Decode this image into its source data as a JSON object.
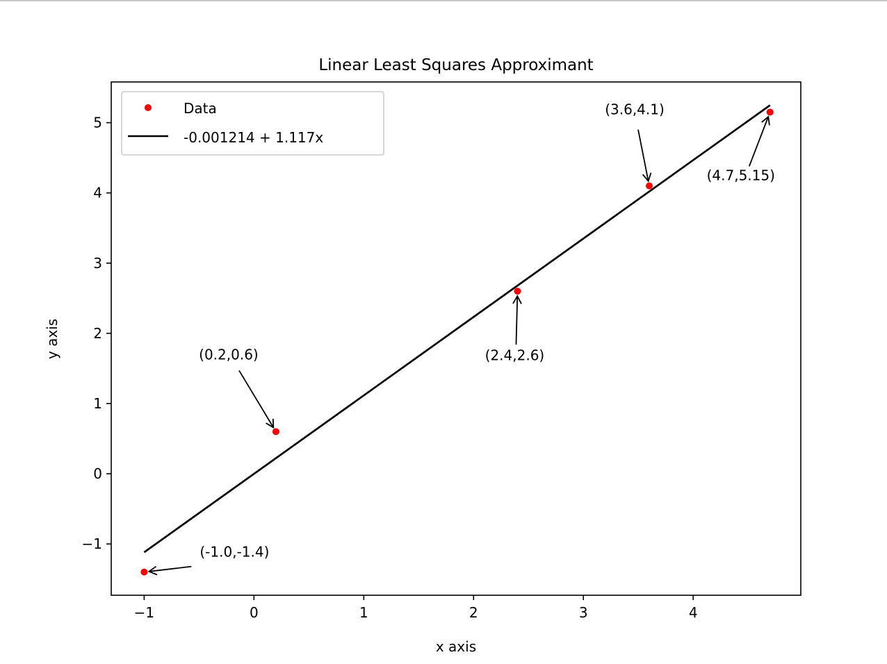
{
  "chart_data": {
    "type": "scatter",
    "title": "Linear Least Squares Approximant",
    "xlabel": "x axis",
    "ylabel": "y axis",
    "xlim": [
      -1.3,
      4.98
    ],
    "ylim": [
      -1.73,
      5.58
    ],
    "grid": false,
    "legend_position": "top-left",
    "x_ticks": [
      -1,
      0,
      1,
      2,
      3,
      4
    ],
    "x_tick_labels": [
      "−1",
      "0",
      "1",
      "2",
      "3",
      "4"
    ],
    "y_ticks": [
      -1,
      0,
      1,
      2,
      3,
      4,
      5
    ],
    "y_tick_labels": [
      "−1",
      "0",
      "1",
      "2",
      "3",
      "4",
      "5"
    ],
    "series": [
      {
        "name": "Data",
        "type": "scatter",
        "color": "#ff0000",
        "points": [
          {
            "x": -1.0,
            "y": -1.4,
            "label": "(-1.0,-1.4)"
          },
          {
            "x": 0.2,
            "y": 0.6,
            "label": "(0.2,0.6)"
          },
          {
            "x": 2.4,
            "y": 2.6,
            "label": "(2.4,2.6)"
          },
          {
            "x": 3.6,
            "y": 4.1,
            "label": "(3.6,4.1)"
          },
          {
            "x": 4.7,
            "y": 5.15,
            "label": "(4.7,5.15)"
          }
        ]
      },
      {
        "name": "-0.001214 + 1.117x",
        "type": "line",
        "color": "#000000",
        "intercept": -0.001214,
        "slope": 1.117,
        "x_range": [
          -1.0,
          4.7
        ]
      }
    ]
  }
}
